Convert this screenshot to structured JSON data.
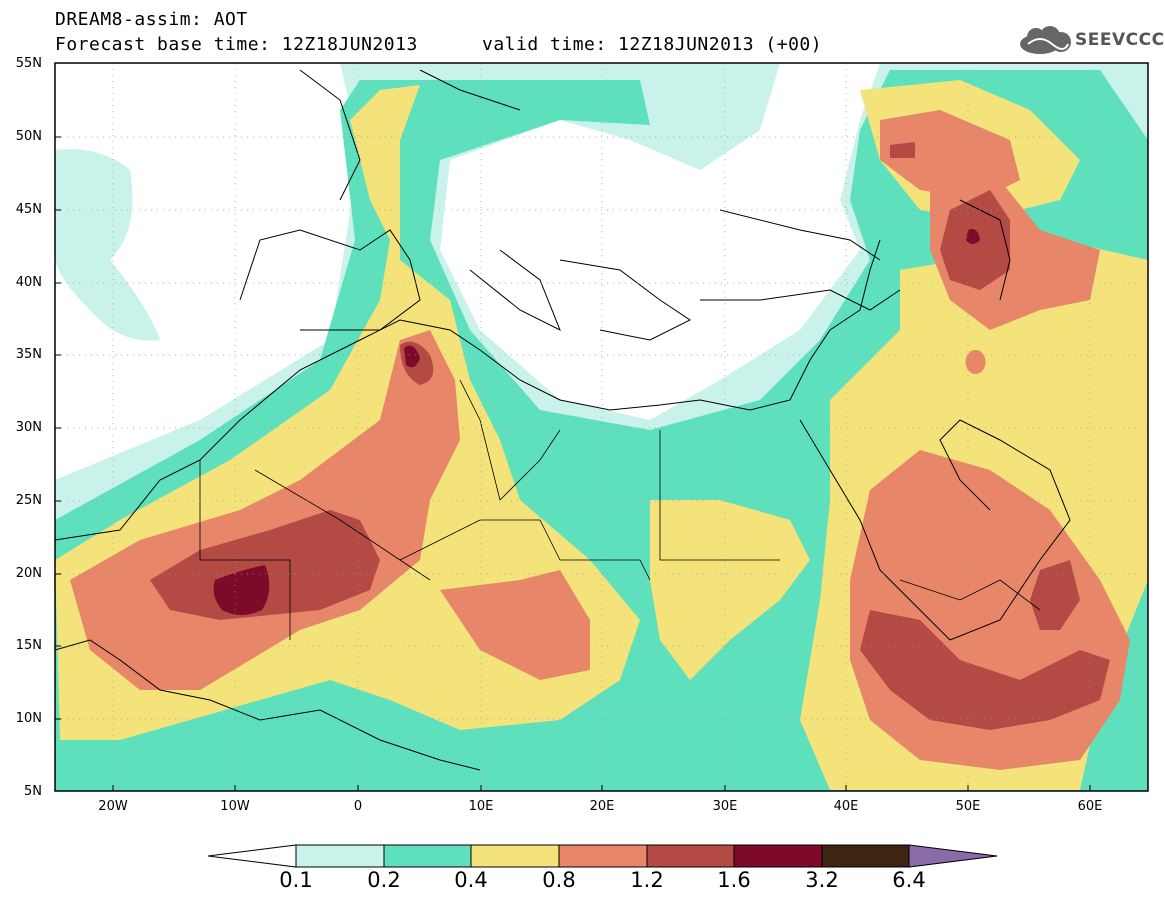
{
  "header": {
    "title": "DREAM8-assim: AOT",
    "base_time": "Forecast base time: 12Z18JUN2013",
    "valid_time": "valid time: 12Z18JUN2013 (+00)"
  },
  "logo": {
    "text": "SEEVCCC",
    "icon": "cloud-icon"
  },
  "map": {
    "lat_labels": [
      "55N",
      "50N",
      "45N",
      "40N",
      "35N",
      "30N",
      "25N",
      "20N",
      "15N",
      "10N",
      "5N"
    ],
    "lon_labels": [
      "20W",
      "10W",
      "0",
      "10E",
      "20E",
      "30E",
      "40E",
      "50E",
      "60E"
    ]
  },
  "colorbar": {
    "levels": [
      "0.1",
      "0.2",
      "0.4",
      "0.8",
      "1.2",
      "1.6",
      "3.2",
      "6.4"
    ],
    "colors": [
      "#c8f2ea",
      "#5fe0bc",
      "#f4e27a",
      "#e8866a",
      "#b44a44",
      "#7e0a2a",
      "#3e2412",
      "#8a6aa8"
    ],
    "under_color": "#ffffff"
  },
  "palette": {
    "land_outline": "#000000",
    "frame": "#000000"
  }
}
